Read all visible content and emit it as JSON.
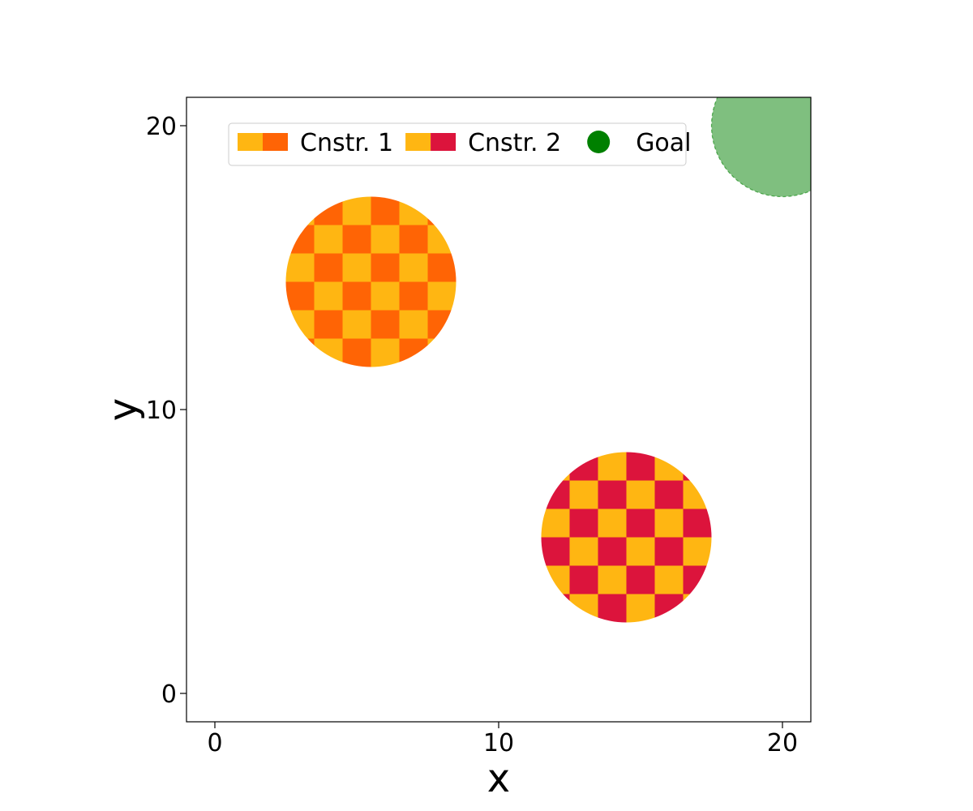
{
  "chart_data": {
    "type": "scatter",
    "xlabel": "x",
    "ylabel": "y",
    "xlim": [
      -1,
      21
    ],
    "ylim": [
      -1,
      21
    ],
    "x_ticks": [
      0,
      10,
      20
    ],
    "y_ticks": [
      0,
      10,
      20
    ],
    "grid": false,
    "legend_placement": "upper-left",
    "regions": [
      {
        "name": "Cnstr. 1",
        "kind": "constraint",
        "center": [
          5.5,
          14.5
        ],
        "radius": 3,
        "pattern": "checker",
        "colors": [
          "#FFB612",
          "#FF6405"
        ]
      },
      {
        "name": "Cnstr. 2",
        "kind": "constraint",
        "center": [
          14.5,
          5.5
        ],
        "radius": 3,
        "pattern": "checker",
        "colors": [
          "#FFB612",
          "#DC143C"
        ]
      },
      {
        "name": "Goal",
        "kind": "goal",
        "center": [
          20,
          20
        ],
        "radius": 2.5,
        "pattern": "solid",
        "colors": [
          "#008000"
        ],
        "opacity": 0.5
      }
    ],
    "legend": [
      {
        "label": "Cnstr. 1",
        "swatch": "split",
        "colors": [
          "#FFB612",
          "#FF6405"
        ]
      },
      {
        "label": "Cnstr. 2",
        "swatch": "split",
        "colors": [
          "#FFB612",
          "#DC143C"
        ]
      },
      {
        "label": "Goal",
        "swatch": "dot",
        "colors": [
          "#008000"
        ]
      }
    ]
  }
}
